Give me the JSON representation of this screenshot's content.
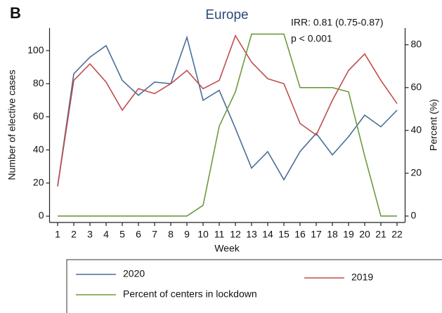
{
  "chart_data": {
    "type": "line",
    "panel_label": "B",
    "title": "Europe",
    "annotations": [
      "IRR: 0.81 (0.75-0.87)",
      "p < 0.001"
    ],
    "x_label": "Week",
    "y_label": "Number of elective cases",
    "y2_label": "Percent (%)",
    "x": [
      1,
      2,
      3,
      4,
      5,
      6,
      7,
      8,
      9,
      10,
      11,
      12,
      13,
      14,
      15,
      16,
      17,
      18,
      19,
      20,
      21,
      22
    ],
    "xlim": [
      0.5,
      22.5
    ],
    "xticks": [
      1,
      2,
      3,
      4,
      5,
      6,
      7,
      8,
      9,
      10,
      11,
      12,
      13,
      14,
      15,
      16,
      17,
      18,
      19,
      20,
      21,
      22
    ],
    "ylim": [
      -3.8,
      113.6
    ],
    "yticks": [
      0,
      20,
      40,
      60,
      80,
      100
    ],
    "y2lim": [
      -3,
      87.8
    ],
    "y2ticks": [
      0,
      20,
      40,
      60,
      80
    ],
    "series": [
      {
        "name": "2020",
        "color": "#4a6e96",
        "values": [
          18,
          86,
          96,
          103,
          82,
          73,
          81,
          80,
          108,
          70,
          76,
          53,
          29,
          39,
          22,
          39,
          50,
          37,
          48,
          61,
          54,
          64
        ]
      },
      {
        "name": "2019",
        "color": "#c04e4e",
        "values": [
          18,
          82,
          92,
          81,
          64,
          77,
          74,
          80,
          88,
          77,
          82,
          109,
          93,
          83,
          80,
          56,
          49,
          70,
          88,
          98,
          82,
          68
        ]
      },
      {
        "name": "Percent of centers in lockdown",
        "color": "#6e9a3e",
        "axis": "y2",
        "values": [
          0,
          0,
          0,
          0,
          0,
          0,
          0,
          0,
          0,
          5,
          42,
          58,
          85,
          85,
          85,
          60,
          60,
          60,
          58,
          28,
          0,
          0
        ]
      }
    ]
  }
}
